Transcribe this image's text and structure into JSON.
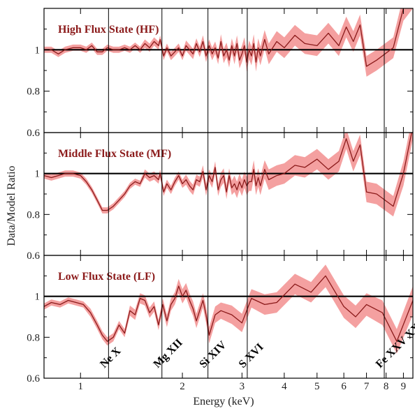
{
  "chart_data": {
    "type": "line",
    "xlabel": "Energy (keV)",
    "ylabel": "Data/Model Ratio",
    "xscale": "log",
    "xlim": [
      0.78,
      9.6
    ],
    "xticks": [
      1,
      2,
      3,
      4,
      5,
      6,
      7,
      8,
      9
    ],
    "yticks": [
      0.6,
      0.8,
      1
    ],
    "reference_line": 1.0,
    "line_color": "#8b1a1a",
    "band_color": "#f4a0a0",
    "title_color": "#8b1a1a",
    "line_markers": [
      {
        "energy": 1.21,
        "label": "Ne X"
      },
      {
        "energy": 1.74,
        "label": "Mg XII"
      },
      {
        "energy": 2.38,
        "label": "Si XIV"
      },
      {
        "energy": 3.11,
        "label": "S XVI"
      },
      {
        "energy": 7.9,
        "label": "Fe XXV XXVI"
      }
    ],
    "panels": [
      {
        "title": "High Flux State (HF)",
        "ylim": [
          0.6,
          1.2
        ],
        "x": [
          0.78,
          0.82,
          0.86,
          0.9,
          0.95,
          1.0,
          1.04,
          1.08,
          1.12,
          1.16,
          1.2,
          1.25,
          1.3,
          1.35,
          1.4,
          1.45,
          1.5,
          1.55,
          1.6,
          1.65,
          1.7,
          1.72,
          1.76,
          1.8,
          1.85,
          1.9,
          1.95,
          2.0,
          2.05,
          2.1,
          2.15,
          2.2,
          2.25,
          2.3,
          2.35,
          2.4,
          2.45,
          2.5,
          2.55,
          2.6,
          2.65,
          2.7,
          2.75,
          2.8,
          2.85,
          2.9,
          2.95,
          3.0,
          3.05,
          3.1,
          3.15,
          3.2,
          3.25,
          3.3,
          3.35,
          3.4,
          3.5,
          3.6,
          3.8,
          4.0,
          4.3,
          4.6,
          5.0,
          5.4,
          5.8,
          6.1,
          6.4,
          6.7,
          7.0,
          7.5,
          8.4,
          9.0,
          9.6
        ],
        "y": [
          1.0,
          1.0,
          0.98,
          1.0,
          1.01,
          1.01,
          1.0,
          1.02,
          0.99,
          0.99,
          1.01,
          1.0,
          1.0,
          1.01,
          1.0,
          1.02,
          1.0,
          1.03,
          1.01,
          1.04,
          1.02,
          1.05,
          0.97,
          1.01,
          0.97,
          0.99,
          1.01,
          0.97,
          1.02,
          1.0,
          0.98,
          1.03,
          0.99,
          1.04,
          0.97,
          1.02,
          0.98,
          1.01,
          0.96,
          1.04,
          0.97,
          1.0,
          0.95,
          1.02,
          0.97,
          1.03,
          0.95,
          0.98,
          1.02,
          0.94,
          1.0,
          0.97,
          1.03,
          0.94,
          1.01,
          0.97,
          1.05,
          0.98,
          1.04,
          1.01,
          1.07,
          1.03,
          1.02,
          1.08,
          1.02,
          1.11,
          1.04,
          1.12,
          0.92,
          0.95,
          1.01,
          1.2,
          1.26
        ],
        "err": [
          0.015,
          0.015,
          0.015,
          0.015,
          0.015,
          0.015,
          0.015,
          0.015,
          0.015,
          0.015,
          0.015,
          0.015,
          0.015,
          0.015,
          0.015,
          0.015,
          0.015,
          0.02,
          0.02,
          0.02,
          0.02,
          0.02,
          0.02,
          0.02,
          0.02,
          0.02,
          0.02,
          0.02,
          0.025,
          0.025,
          0.025,
          0.025,
          0.025,
          0.03,
          0.03,
          0.03,
          0.03,
          0.03,
          0.03,
          0.035,
          0.035,
          0.035,
          0.035,
          0.035,
          0.04,
          0.04,
          0.04,
          0.04,
          0.04,
          0.045,
          0.045,
          0.045,
          0.045,
          0.045,
          0.045,
          0.045,
          0.045,
          0.05,
          0.05,
          0.05,
          0.05,
          0.05,
          0.05,
          0.05,
          0.05,
          0.05,
          0.05,
          0.05,
          0.05,
          0.05,
          0.05,
          0.06,
          0.06
        ]
      },
      {
        "title": "Middle Flux State (MF)",
        "ylim": [
          0.6,
          1.2
        ],
        "x": [
          0.78,
          0.82,
          0.86,
          0.9,
          0.95,
          1.0,
          1.04,
          1.08,
          1.12,
          1.16,
          1.2,
          1.25,
          1.3,
          1.35,
          1.4,
          1.45,
          1.5,
          1.55,
          1.6,
          1.65,
          1.7,
          1.72,
          1.76,
          1.8,
          1.85,
          1.9,
          1.95,
          2.0,
          2.05,
          2.1,
          2.15,
          2.2,
          2.25,
          2.3,
          2.35,
          2.4,
          2.45,
          2.5,
          2.55,
          2.6,
          2.65,
          2.7,
          2.75,
          2.8,
          2.85,
          2.9,
          2.95,
          3.0,
          3.05,
          3.1,
          3.15,
          3.2,
          3.25,
          3.3,
          3.35,
          3.4,
          3.5,
          3.6,
          3.8,
          4.0,
          4.3,
          4.6,
          5.0,
          5.4,
          5.8,
          6.1,
          6.4,
          6.7,
          7.0,
          7.5,
          8.4,
          9.0,
          9.6
        ],
        "y": [
          0.99,
          0.98,
          0.99,
          1.0,
          1.0,
          0.99,
          0.96,
          0.92,
          0.87,
          0.82,
          0.82,
          0.84,
          0.87,
          0.9,
          0.94,
          0.96,
          0.95,
          1.0,
          0.98,
          0.99,
          0.97,
          1.0,
          0.91,
          0.95,
          0.92,
          0.96,
          0.99,
          0.95,
          0.97,
          0.94,
          0.92,
          0.97,
          0.96,
          1.01,
          0.92,
          0.99,
          0.96,
          1.03,
          0.92,
          0.97,
          0.99,
          0.91,
          0.99,
          0.93,
          0.95,
          0.92,
          0.96,
          0.93,
          0.97,
          0.94,
          0.96,
          0.96,
          1.02,
          0.94,
          0.98,
          0.94,
          1.02,
          0.97,
          0.99,
          1.0,
          1.04,
          1.03,
          1.07,
          1.02,
          1.06,
          1.17,
          1.06,
          1.14,
          0.91,
          0.9,
          0.84,
          1.0,
          1.23
        ],
        "err": [
          0.015,
          0.015,
          0.015,
          0.015,
          0.015,
          0.015,
          0.015,
          0.015,
          0.015,
          0.015,
          0.015,
          0.015,
          0.015,
          0.015,
          0.015,
          0.015,
          0.015,
          0.02,
          0.02,
          0.02,
          0.02,
          0.02,
          0.02,
          0.02,
          0.02,
          0.02,
          0.02,
          0.02,
          0.025,
          0.025,
          0.025,
          0.025,
          0.025,
          0.03,
          0.03,
          0.03,
          0.03,
          0.03,
          0.03,
          0.035,
          0.035,
          0.035,
          0.035,
          0.035,
          0.04,
          0.04,
          0.04,
          0.04,
          0.04,
          0.045,
          0.045,
          0.045,
          0.045,
          0.045,
          0.045,
          0.045,
          0.045,
          0.05,
          0.05,
          0.05,
          0.05,
          0.05,
          0.05,
          0.05,
          0.05,
          0.05,
          0.05,
          0.05,
          0.05,
          0.05,
          0.05,
          0.06,
          0.06
        ]
      },
      {
        "title": "Low Flux State (LF)",
        "ylim": [
          0.6,
          1.2
        ],
        "x": [
          0.78,
          0.82,
          0.87,
          0.92,
          0.97,
          1.02,
          1.07,
          1.12,
          1.16,
          1.2,
          1.25,
          1.3,
          1.35,
          1.4,
          1.45,
          1.5,
          1.55,
          1.6,
          1.65,
          1.7,
          1.75,
          1.8,
          1.85,
          1.9,
          1.95,
          2.0,
          2.05,
          2.1,
          2.15,
          2.2,
          2.25,
          2.3,
          2.35,
          2.4,
          2.5,
          2.6,
          2.8,
          3.0,
          3.2,
          3.5,
          3.8,
          4.3,
          4.8,
          5.3,
          6.0,
          6.5,
          7.0,
          7.8,
          8.6,
          9.6
        ],
        "y": [
          0.95,
          0.97,
          0.96,
          0.98,
          0.97,
          0.96,
          0.92,
          0.86,
          0.81,
          0.78,
          0.8,
          0.86,
          0.82,
          0.93,
          0.91,
          0.99,
          0.98,
          0.92,
          0.95,
          0.86,
          0.96,
          0.88,
          0.96,
          0.99,
          1.05,
          1.0,
          1.03,
          0.98,
          0.94,
          0.88,
          0.93,
          0.98,
          0.91,
          0.81,
          0.91,
          0.93,
          0.91,
          0.87,
          0.99,
          0.96,
          0.97,
          1.06,
          1.02,
          1.1,
          0.95,
          0.9,
          0.96,
          0.92,
          0.78,
          0.98
        ],
        "err": [
          0.015,
          0.015,
          0.015,
          0.015,
          0.015,
          0.015,
          0.02,
          0.02,
          0.02,
          0.02,
          0.02,
          0.02,
          0.02,
          0.025,
          0.025,
          0.025,
          0.025,
          0.025,
          0.025,
          0.025,
          0.03,
          0.03,
          0.03,
          0.03,
          0.035,
          0.035,
          0.035,
          0.035,
          0.035,
          0.035,
          0.035,
          0.035,
          0.04,
          0.04,
          0.04,
          0.04,
          0.045,
          0.045,
          0.045,
          0.05,
          0.05,
          0.05,
          0.05,
          0.055,
          0.055,
          0.055,
          0.055,
          0.06,
          0.06,
          0.07
        ]
      }
    ]
  }
}
